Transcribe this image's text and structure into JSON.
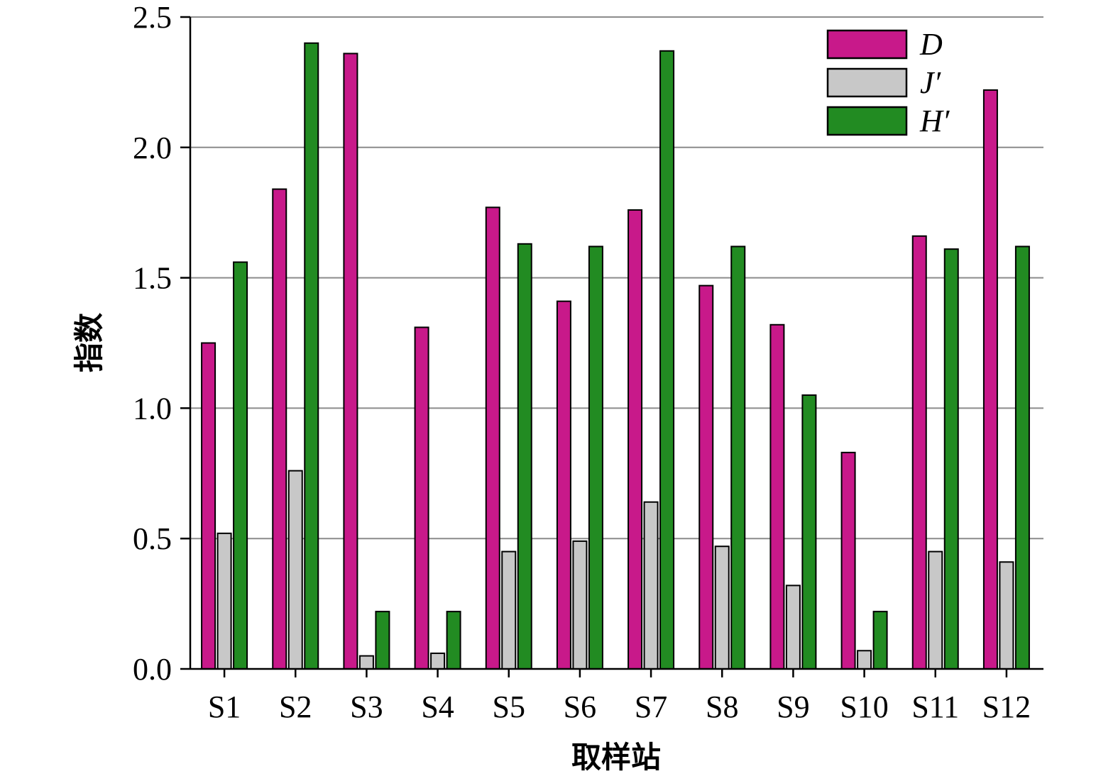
{
  "chart_data": {
    "type": "bar",
    "title": "",
    "xlabel": "取样站",
    "ylabel": "指数",
    "ylim": [
      0,
      2.5
    ],
    "yticks": [
      "0.0",
      "0.5",
      "1.0",
      "1.5",
      "2.0",
      "2.5"
    ],
    "ytick_values": [
      0,
      0.5,
      1.0,
      1.5,
      2.0,
      2.5
    ],
    "grid": true,
    "legend_position": "top-right",
    "categories": [
      "S1",
      "S2",
      "S3",
      "S4",
      "S5",
      "S6",
      "S7",
      "S8",
      "S9",
      "S10",
      "S11",
      "S12"
    ],
    "series": [
      {
        "name": "D",
        "color": "#c8198a",
        "values": [
          1.25,
          1.84,
          2.36,
          1.31,
          1.77,
          1.41,
          1.76,
          1.47,
          1.32,
          0.83,
          1.66,
          2.22
        ]
      },
      {
        "name": "J′",
        "color": "#c8c8c8",
        "values": [
          0.52,
          0.76,
          0.05,
          0.06,
          0.45,
          0.49,
          0.64,
          0.47,
          0.32,
          0.07,
          0.45,
          0.41
        ]
      },
      {
        "name": "H′",
        "color": "#228b22",
        "values": [
          1.56,
          2.4,
          0.22,
          0.22,
          1.63,
          1.62,
          2.37,
          1.62,
          1.05,
          0.22,
          1.61,
          1.62
        ]
      }
    ]
  }
}
